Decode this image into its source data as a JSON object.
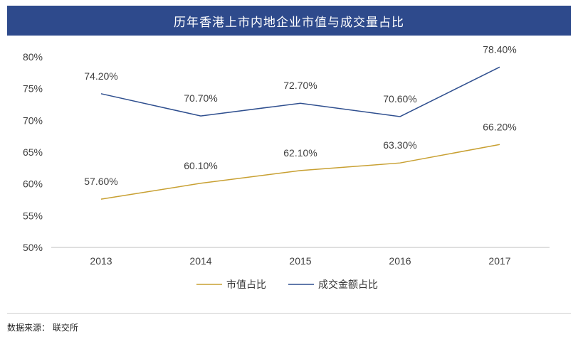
{
  "colors": {
    "title_bg": "#2e4a8c",
    "series_market_cap": "#c8a032",
    "series_turnover": "#2f4f8f",
    "axis": "#bfbfbf"
  },
  "source_text": "数据来源： 联交所",
  "chart_data": {
    "type": "line",
    "title": "历年香港上市内地企业市值与成交量占比",
    "xlabel": "",
    "ylabel": "",
    "categories": [
      "2013",
      "2014",
      "2015",
      "2016",
      "2017"
    ],
    "ylim": [
      50,
      80
    ],
    "yticks": [
      "50%",
      "55%",
      "60%",
      "65%",
      "70%",
      "75%",
      "80%"
    ],
    "grid": false,
    "legend": "bottom",
    "series": [
      {
        "name": "市值占比",
        "values": [
          57.6,
          60.1,
          62.1,
          63.3,
          66.2
        ],
        "labels": [
          "57.60%",
          "60.10%",
          "62.10%",
          "63.30%",
          "66.20%"
        ]
      },
      {
        "name": "成交金额占比",
        "values": [
          74.2,
          70.7,
          72.7,
          70.6,
          78.4
        ],
        "labels": [
          "74.20%",
          "70.70%",
          "72.70%",
          "70.60%",
          "78.40%"
        ]
      }
    ]
  }
}
